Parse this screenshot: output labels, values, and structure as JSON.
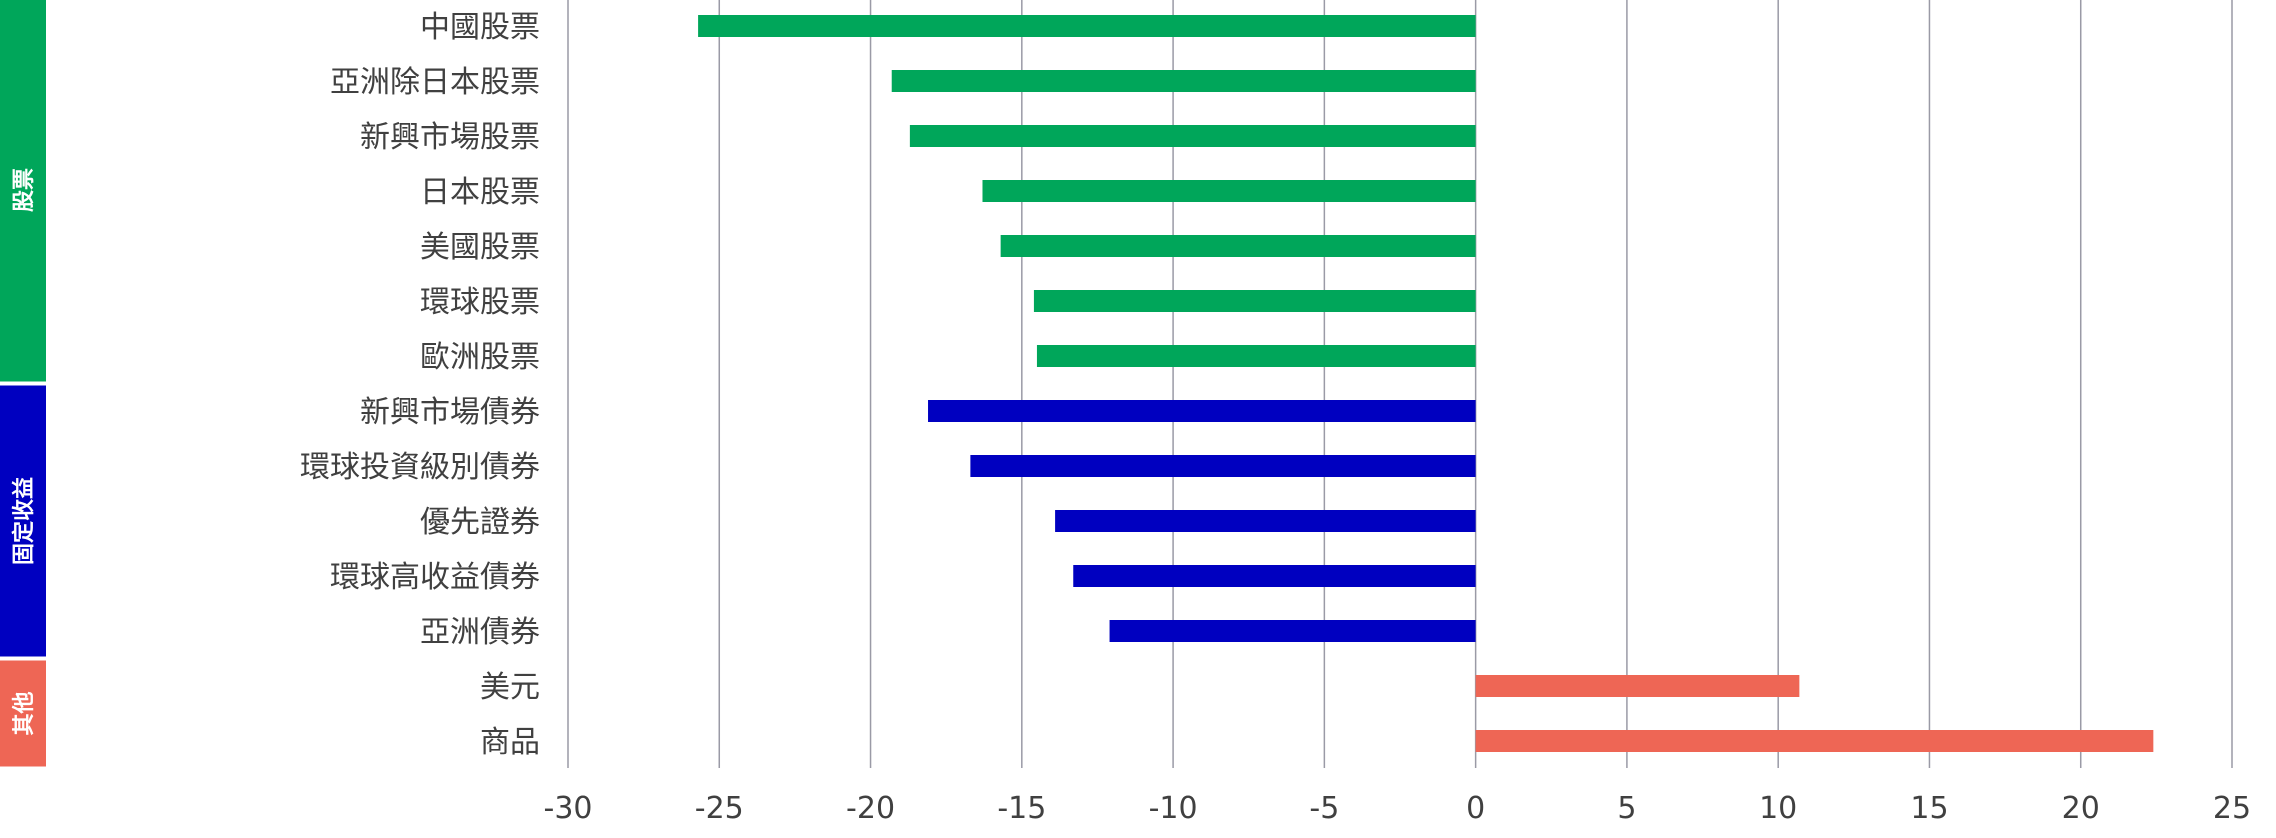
{
  "chart_data": {
    "type": "bar",
    "orientation": "horizontal",
    "title": "",
    "xlabel": "",
    "ylabel": "",
    "xlim": [
      -30,
      25
    ],
    "x_ticks": [
      -30,
      -25,
      -20,
      -15,
      -10,
      -5,
      0,
      5,
      10,
      15,
      20,
      25
    ],
    "x_tick_labels": [
      "-30",
      "-25",
      "-20",
      "-15",
      "-10",
      "-5",
      "0",
      "5",
      "10",
      "15",
      "20",
      "25"
    ],
    "grid": "vertical",
    "categories": [
      "中國股票",
      "亞洲除日本股票",
      "新興市場股票",
      "日本股票",
      "美國股票",
      "環球股票",
      "歐洲股票",
      "新興市場債券",
      "環球投資級別債券",
      "優先證券",
      "環球高收益債券",
      "亞洲債券",
      "美元",
      "商品"
    ],
    "values": [
      -25.7,
      -19.3,
      -18.7,
      -16.3,
      -15.7,
      -14.6,
      -14.5,
      -18.1,
      -16.7,
      -13.9,
      -13.3,
      -12.1,
      10.7,
      22.4
    ],
    "groups": [
      {
        "name": "股票",
        "color": "#00A65A",
        "start": 0,
        "end": 6
      },
      {
        "name": "固定收益",
        "color": "#0000C0",
        "start": 7,
        "end": 11
      },
      {
        "name": "其他",
        "color": "#EE6655",
        "start": 12,
        "end": 13
      }
    ],
    "colors": {
      "grid": "#9a9aa6",
      "text": "#404040"
    }
  }
}
